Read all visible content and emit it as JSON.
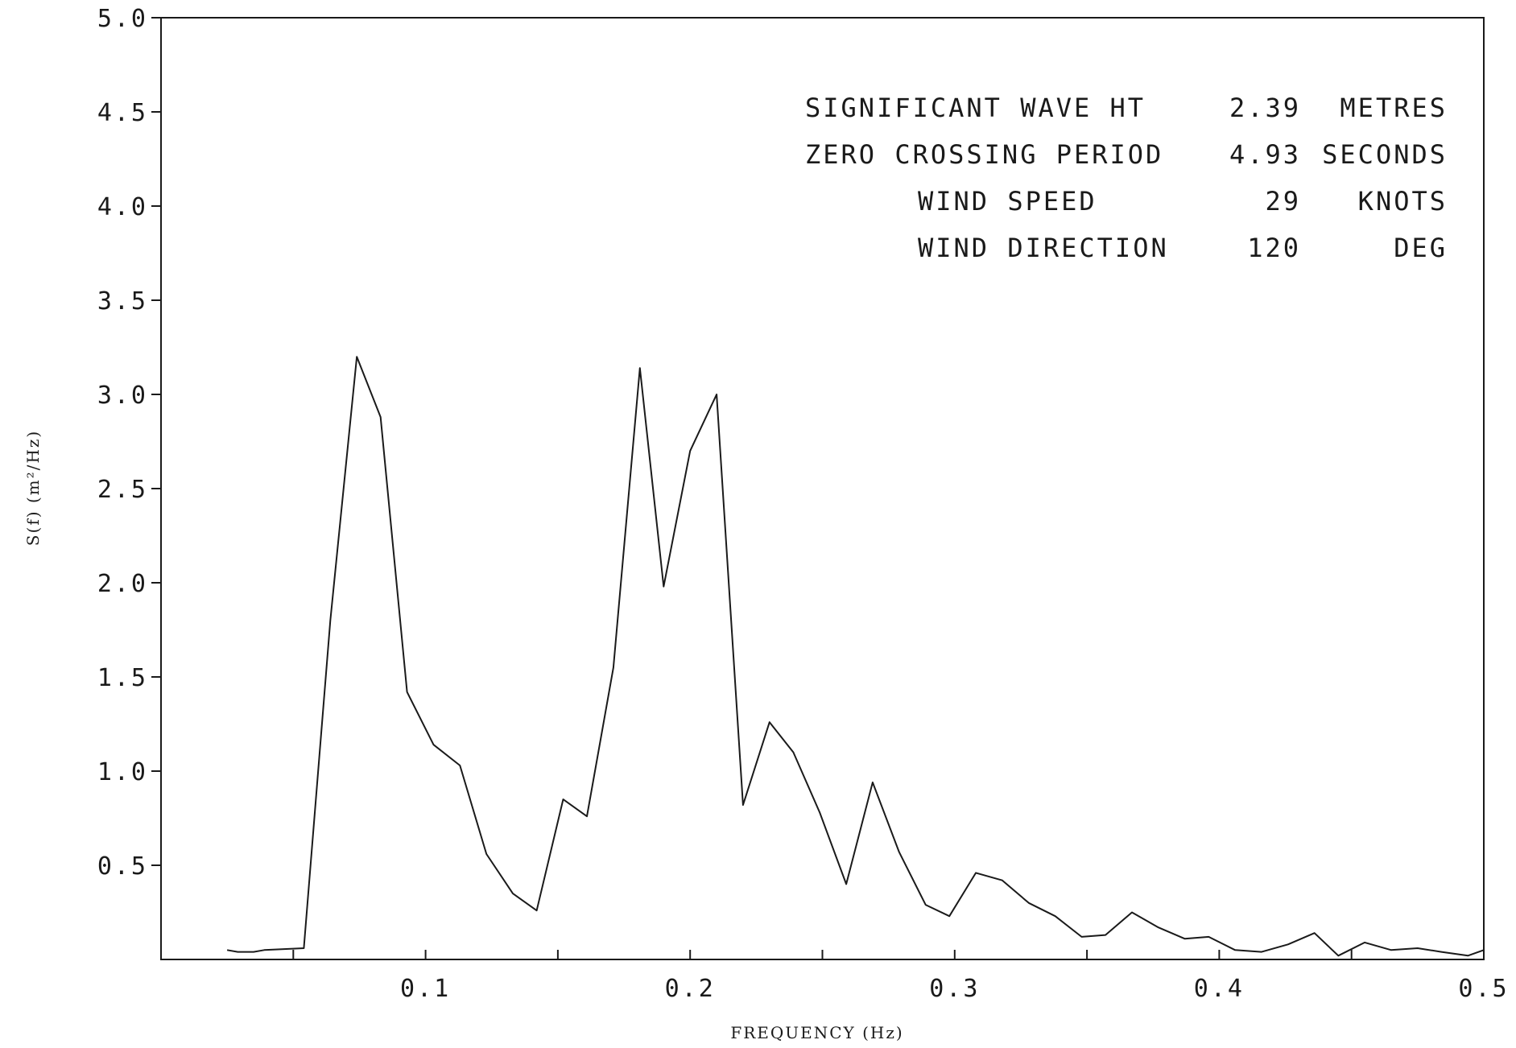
{
  "chart_data": {
    "type": "line",
    "xlabel": "FREQUENCY (Hz)",
    "ylabel": "S(f) (m²/Hz)",
    "xlim": [
      0.0,
      0.5
    ],
    "ylim": [
      0.0,
      5.0
    ],
    "xticks": [
      0.05,
      0.1,
      0.15,
      0.2,
      0.25,
      0.3,
      0.35,
      0.4,
      0.45,
      0.5
    ],
    "xtick_labels": [
      "0.1",
      "0.2",
      "0.3",
      "0.4",
      "0.5"
    ],
    "xtick_label_values": [
      0.1,
      0.2,
      0.3,
      0.4,
      0.5
    ],
    "yticks": [
      0.5,
      1.0,
      1.5,
      2.0,
      2.5,
      3.0,
      3.5,
      4.0,
      4.5,
      5.0
    ],
    "ytick_labels": [
      "0.5",
      "1.0",
      "1.5",
      "2.0",
      "2.5",
      "3.0",
      "3.5",
      "4.0",
      "4.5",
      "5.0"
    ],
    "grid": false,
    "series": [
      {
        "x": [
          0.025,
          0.029,
          0.035,
          0.039,
          0.054,
          0.064,
          0.074,
          0.083,
          0.093,
          0.103,
          0.113,
          0.123,
          0.133,
          0.142,
          0.152,
          0.161,
          0.171,
          0.181,
          0.19,
          0.2,
          0.21,
          0.22,
          0.23,
          0.239,
          0.249,
          0.259,
          0.269,
          0.279,
          0.289,
          0.298,
          0.308,
          0.318,
          0.328,
          0.338,
          0.348,
          0.357,
          0.367,
          0.377,
          0.387,
          0.396,
          0.406,
          0.416,
          0.426,
          0.436,
          0.445,
          0.455,
          0.465,
          0.475,
          0.484,
          0.494,
          0.5
        ],
        "y": [
          0.05,
          0.04,
          0.04,
          0.05,
          0.06,
          1.8,
          3.2,
          2.88,
          1.42,
          1.14,
          1.03,
          0.56,
          0.35,
          0.26,
          0.85,
          0.76,
          1.55,
          3.14,
          1.98,
          2.7,
          3.0,
          0.82,
          1.26,
          1.1,
          0.78,
          0.4,
          0.94,
          0.57,
          0.29,
          0.23,
          0.46,
          0.42,
          0.3,
          0.23,
          0.12,
          0.13,
          0.25,
          0.17,
          0.11,
          0.12,
          0.05,
          0.04,
          0.08,
          0.14,
          0.02,
          0.09,
          0.05,
          0.06,
          0.04,
          0.02,
          0.05
        ]
      }
    ]
  },
  "info_panel": {
    "rows": [
      {
        "label": "SIGNIFICANT WAVE HT",
        "value": "2.39",
        "unit": "METRES"
      },
      {
        "label": "ZERO CROSSING PERIOD",
        "value": "4.93",
        "unit": "SECONDS"
      },
      {
        "label": "WIND SPEED",
        "value": "29",
        "unit": "KNOTS"
      },
      {
        "label": "WIND DIRECTION",
        "value": "120",
        "unit": "DEG"
      }
    ]
  },
  "colors": {
    "ink": "#1a1a1a",
    "background": "#ffffff"
  }
}
